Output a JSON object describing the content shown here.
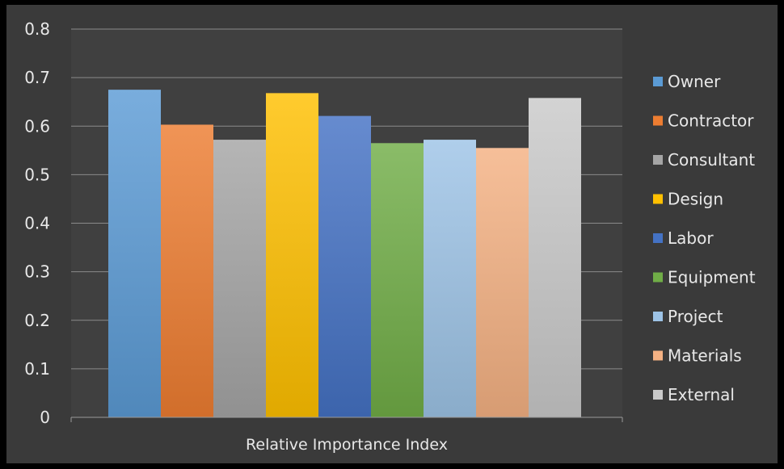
{
  "chart_data": {
    "type": "bar",
    "title": "",
    "xlabel": "Relative Importance Index",
    "ylabel": "",
    "ylim": [
      0,
      0.8
    ],
    "yticks": [
      "0",
      "0.1",
      "0.2",
      "0.3",
      "0.4",
      "0.5",
      "0.6",
      "0.7",
      "0.8"
    ],
    "grid": true,
    "legend_position": "right",
    "series": [
      {
        "name": "Owner",
        "value": 0.675,
        "color": "#5b9bd5"
      },
      {
        "name": "Contractor",
        "value": 0.603,
        "color": "#ed7d31"
      },
      {
        "name": "Consultant",
        "value": 0.572,
        "color": "#a5a5a5"
      },
      {
        "name": "Design",
        "value": 0.668,
        "color": "#ffc000"
      },
      {
        "name": "Labor",
        "value": 0.621,
        "color": "#4472c4"
      },
      {
        "name": "Equipment",
        "value": 0.565,
        "color": "#70ad47"
      },
      {
        "name": "Project",
        "value": 0.572,
        "color": "#9dc3e6"
      },
      {
        "name": "Materials",
        "value": 0.555,
        "color": "#f4b183"
      },
      {
        "name": "External",
        "value": 0.658,
        "color": "#c9c9c9"
      }
    ]
  }
}
